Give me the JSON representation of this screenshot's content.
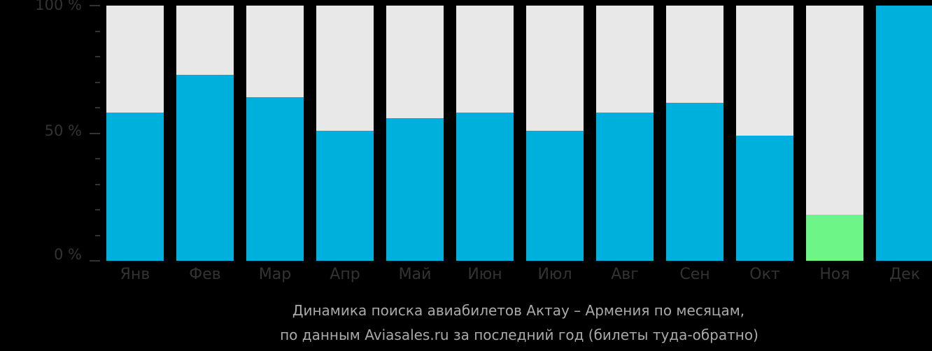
{
  "chart_data": {
    "type": "bar",
    "title": "Динамика поиска авиабилетов Актау – Армения по месяцам, по данным Aviasales.ru за последний год (билеты туда-обратно)",
    "xlabel": "",
    "ylabel": "",
    "ylim": [
      0,
      100
    ],
    "y_ticks": [
      "0 %",
      "50 %",
      "100 %"
    ],
    "categories": [
      "Янв",
      "Фев",
      "Мар",
      "Апр",
      "Май",
      "Июн",
      "Июл",
      "Авг",
      "Сен",
      "Окт",
      "Ноя",
      "Дек"
    ],
    "values": [
      58,
      73,
      64,
      51,
      56,
      58,
      51,
      58,
      62,
      49,
      18,
      100
    ],
    "bar_colors": [
      "#00b0dc",
      "#00b0dc",
      "#00b0dc",
      "#00b0dc",
      "#00b0dc",
      "#00b0dc",
      "#00b0dc",
      "#00b0dc",
      "#00b0dc",
      "#00b0dc",
      "#6ef587",
      "#00b0dc"
    ],
    "background_bar_color": "#e8e8e8",
    "grid": false,
    "legend": null
  },
  "axis": {
    "y_100": "100 %",
    "y_50": "50 %",
    "y_0": "0 %"
  },
  "caption": {
    "line1": "Динамика поиска авиабилетов Актау – Армения по месяцам,",
    "line2": "по данным Aviasales.ru за последний год (билеты туда-обратно)"
  }
}
